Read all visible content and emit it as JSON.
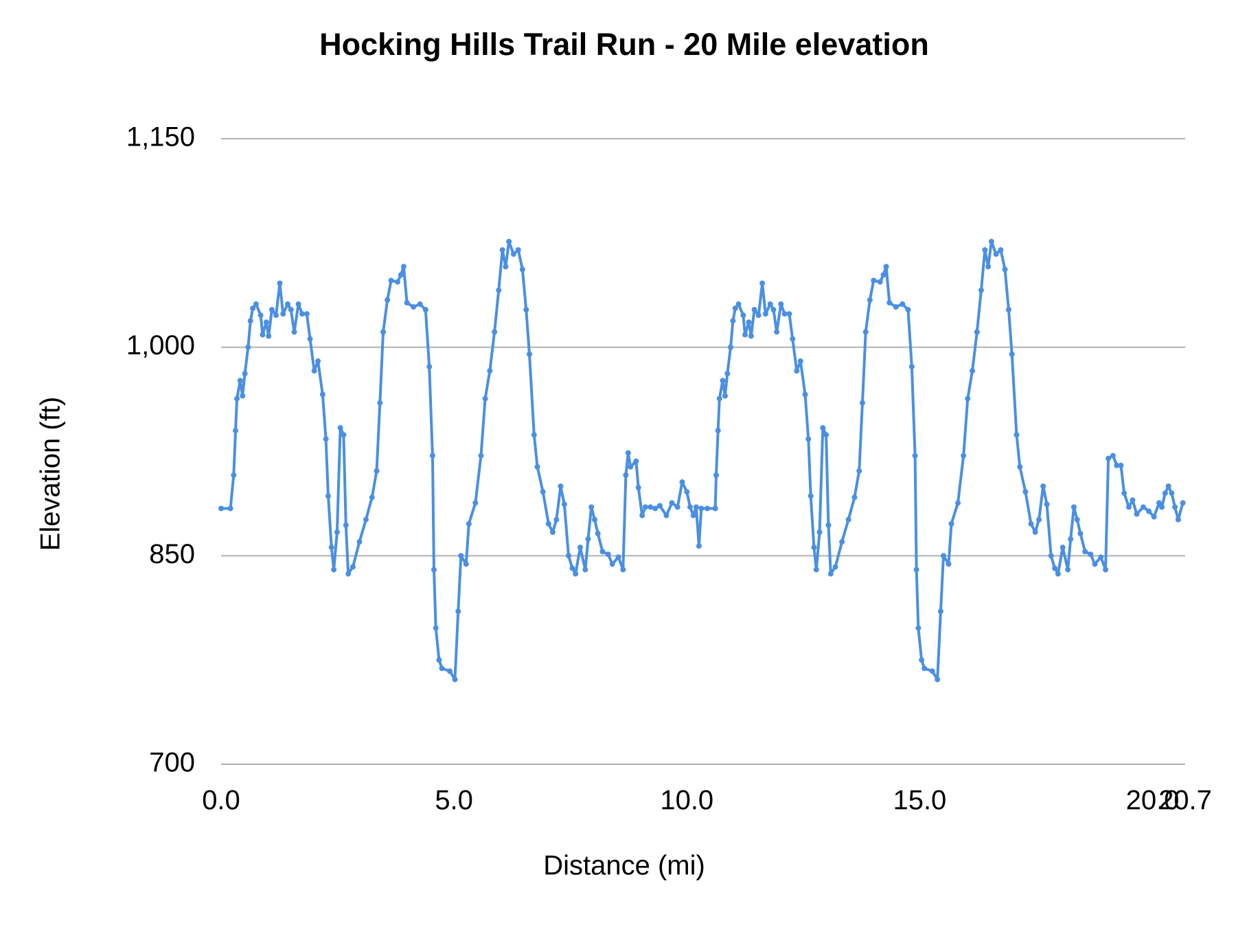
{
  "chart_data": {
    "type": "line",
    "title": "Hocking Hills Trail Run - 20 Mile elevation",
    "x_label": "Distance (mi)",
    "y_label": "Elevation (ft)",
    "color": "#4a8fe2",
    "markers": true,
    "grid": true,
    "xlim": [
      0,
      20.7
    ],
    "xticks": [
      {
        "value": 0,
        "label": "0.0"
      },
      {
        "value": 5,
        "label": "5.0"
      },
      {
        "value": 10,
        "label": "10.0"
      },
      {
        "value": 15,
        "label": "15.0"
      },
      {
        "value": 20,
        "label": "20.0"
      },
      {
        "value": 20.7,
        "label": "20.7"
      }
    ],
    "ylim": [
      700,
      1150
    ],
    "yticks": [
      700,
      850,
      {
        "value": 1000,
        "label": "1,000"
      },
      {
        "value": 1150,
        "label": "1,150"
      }
    ],
    "x": [
      0,
      0.2,
      0.27,
      0.31,
      0.34,
      0.41,
      0.46,
      0.51,
      0.58,
      0.63,
      0.68,
      0.75,
      0.85,
      0.89,
      0.97,
      1.02,
      1.09,
      1.18,
      1.26,
      1.33,
      1.43,
      1.5,
      1.57,
      1.66,
      1.74,
      1.84,
      1.91,
      2.0,
      2.08,
      2.18,
      2.25,
      2.3,
      2.37,
      2.42,
      2.49,
      2.56,
      2.63,
      2.68,
      2.73,
      2.83,
      2.97,
      3.11,
      3.24,
      3.34,
      3.41,
      3.48,
      3.57,
      3.65,
      3.79,
      3.86,
      3.92,
      3.99,
      4.13,
      4.27,
      4.39,
      4.47,
      4.54,
      4.57,
      4.61,
      4.68,
      4.74,
      4.91,
      5.02,
      5.09,
      5.15,
      5.26,
      5.32,
      5.46,
      5.58,
      5.67,
      5.77,
      5.87,
      5.96,
      6.04,
      6.11,
      6.18,
      6.28,
      6.38,
      6.47,
      6.55,
      6.62,
      6.72,
      6.79,
      6.91,
      7.03,
      7.12,
      7.2,
      7.29,
      7.37,
      7.46,
      7.54,
      7.61,
      7.71,
      7.82,
      7.88,
      7.95,
      8.02,
      8.09,
      8.19,
      8.31,
      8.4,
      8.53,
      8.63,
      8.69,
      8.74,
      8.79,
      8.91,
      8.96,
      9.04,
      9.11,
      9.22,
      9.32,
      9.42,
      9.56,
      9.68,
      9.8,
      9.9,
      10.0,
      10.07,
      10.14,
      10.2,
      10.26,
      10.31,
      10.44,
      10.61,
      10.63,
      10.67,
      10.7,
      10.77,
      10.82,
      10.87,
      10.94,
      10.99,
      11.04,
      11.11,
      11.21,
      11.25,
      11.33,
      11.38,
      11.45,
      11.54,
      11.62,
      11.69,
      11.79,
      11.86,
      11.93,
      12.02,
      12.1,
      12.2,
      12.27,
      12.36,
      12.44,
      12.54,
      12.61,
      12.66,
      12.73,
      12.78,
      12.85,
      12.92,
      12.99,
      13.04,
      13.09,
      13.19,
      13.33,
      13.47,
      13.6,
      13.7,
      13.77,
      13.84,
      13.93,
      14.01,
      14.15,
      14.22,
      14.28,
      14.35,
      14.49,
      14.63,
      14.75,
      14.83,
      14.9,
      14.93,
      14.97,
      15.04,
      15.1,
      15.27,
      15.38,
      15.45,
      15.51,
      15.62,
      15.68,
      15.82,
      15.94,
      16.03,
      16.13,
      16.23,
      16.32,
      16.4,
      16.47,
      16.54,
      16.64,
      16.74,
      16.83,
      16.91,
      16.98,
      17.08,
      17.15,
      17.27,
      17.39,
      17.48,
      17.56,
      17.65,
      17.73,
      17.82,
      17.9,
      17.97,
      18.07,
      18.18,
      18.24,
      18.31,
      18.38,
      18.45,
      18.55,
      18.67,
      18.76,
      18.89,
      18.99,
      19.05,
      19.15,
      19.23,
      19.32,
      19.39,
      19.49,
      19.57,
      19.66,
      19.8,
      19.92,
      20.03,
      20.14,
      20.2,
      20.27,
      20.34,
      20.41,
      20.48,
      20.55,
      20.65
    ],
    "values": [
      884,
      884,
      908,
      940,
      963,
      976,
      965,
      981,
      1000,
      1019,
      1028,
      1031,
      1023,
      1009,
      1018,
      1008,
      1027,
      1023,
      1046,
      1024,
      1031,
      1027,
      1011,
      1031,
      1024,
      1024,
      1006,
      983,
      990,
      966,
      934,
      893,
      856,
      840,
      867,
      942,
      937,
      872,
      837,
      842,
      860,
      876,
      892,
      911,
      960,
      1011,
      1034,
      1048,
      1047,
      1052,
      1058,
      1032,
      1029,
      1031,
      1027,
      986,
      922,
      840,
      798,
      775,
      769,
      767,
      761,
      810,
      850,
      844,
      873,
      888,
      922,
      963,
      983,
      1011,
      1041,
      1070,
      1058,
      1076,
      1067,
      1070,
      1056,
      1027,
      995,
      937,
      914,
      896,
      873,
      867,
      876,
      900,
      887,
      850,
      841,
      837,
      856,
      840,
      862,
      885,
      876,
      866,
      853,
      851,
      844,
      849,
      840,
      908,
      924,
      914,
      918,
      899,
      879,
      885,
      885,
      884,
      886,
      879,
      888,
      885,
      903,
      896,
      885,
      879,
      885,
      857,
      884,
      884,
      884,
      908,
      940,
      963,
      976,
      965,
      981,
      1000,
      1019,
      1028,
      1031,
      1023,
      1009,
      1018,
      1008,
      1027,
      1023,
      1046,
      1024,
      1031,
      1027,
      1011,
      1031,
      1024,
      1024,
      1006,
      983,
      990,
      966,
      934,
      893,
      856,
      840,
      867,
      942,
      937,
      872,
      837,
      842,
      860,
      876,
      892,
      911,
      960,
      1011,
      1034,
      1048,
      1047,
      1052,
      1058,
      1032,
      1029,
      1031,
      1027,
      986,
      922,
      840,
      798,
      775,
      769,
      767,
      761,
      810,
      850,
      844,
      873,
      888,
      922,
      963,
      983,
      1011,
      1041,
      1070,
      1058,
      1076,
      1067,
      1070,
      1056,
      1027,
      995,
      937,
      914,
      896,
      873,
      867,
      876,
      900,
      887,
      850,
      841,
      837,
      856,
      840,
      862,
      885,
      876,
      866,
      853,
      851,
      844,
      849,
      840,
      920,
      922,
      915,
      915,
      895,
      885,
      890,
      880,
      885,
      882,
      878,
      888,
      885,
      895,
      900,
      895,
      885,
      876,
      888
    ]
  }
}
